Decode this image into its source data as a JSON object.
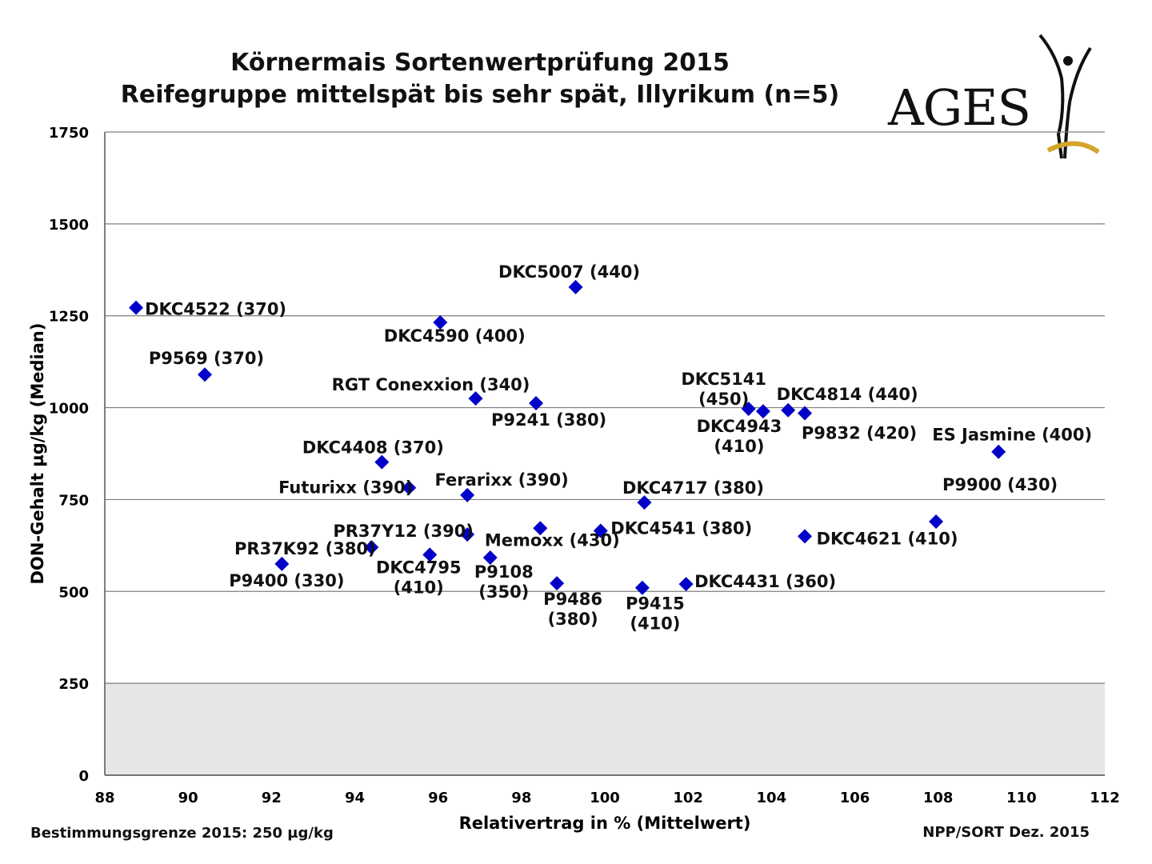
{
  "header": {
    "title_line1": "Körnermais Sortenwertprüfung  2015",
    "title_line2": "Reifegruppe  mittelspät bis sehr spät, Illyrikum  (n=5)"
  },
  "logo": {
    "text": "AGES",
    "accent_color": "#d4a52a"
  },
  "footer": {
    "left": "Bestimmungsgrenze  2015:  250 µg/kg",
    "right": "NPP/SORT  Dez.  2015"
  },
  "colors": {
    "marker": "#0000c8",
    "grid": "#7f7f7f",
    "shade": "#e6e6e6"
  },
  "chart_data": {
    "type": "scatter",
    "xlabel": "Relativertrag in % (Mittelwert)",
    "ylabel": "DON-Gehalt µg/kg (Median)",
    "xlim": [
      88,
      112
    ],
    "ylim": [
      0,
      1750
    ],
    "x_ticks": [
      88,
      90,
      92,
      94,
      96,
      98,
      100,
      102,
      104,
      106,
      108,
      110,
      112
    ],
    "y_ticks": [
      0,
      250,
      500,
      750,
      1000,
      1250,
      1500,
      1750
    ],
    "grid": "horizontal",
    "shaded_region": {
      "y_from": 0,
      "y_to": 250
    },
    "points": [
      {
        "label": "DKC4522 (370)",
        "x": 88.75,
        "y": 1272
      },
      {
        "label": "P9569 (370)",
        "x": 90.4,
        "y": 1090
      },
      {
        "label": "DKC5007 (440)",
        "x": 99.3,
        "y": 1328
      },
      {
        "label": "DKC4590 (400)",
        "x": 96.05,
        "y": 1232
      },
      {
        "label": "RGT Conexxion (340)",
        "x": 96.9,
        "y": 1025
      },
      {
        "label": "P9241 (380)",
        "x": 98.35,
        "y": 1012
      },
      {
        "label": "DKC5141 (450)",
        "x": 103.45,
        "y": 997
      },
      {
        "label": "DKC4943 (410)",
        "x": 103.8,
        "y": 990
      },
      {
        "label": "DKC4814 (440)",
        "x": 104.4,
        "y": 993
      },
      {
        "label": "P9832 (420)",
        "x": 104.8,
        "y": 985
      },
      {
        "label": "ES Jasmine (400)",
        "x": 109.45,
        "y": 880
      },
      {
        "label": "DKC4408 (370)",
        "x": 94.65,
        "y": 852
      },
      {
        "label": "Futurixx (390)",
        "x": 95.3,
        "y": 782
      },
      {
        "label": "Ferarixx (390)",
        "x": 96.7,
        "y": 762
      },
      {
        "label": "DKC4717 (380)",
        "x": 100.95,
        "y": 742
      },
      {
        "label": "P9900 (430)",
        "x": 107.95,
        "y": 690
      },
      {
        "label": "PR37Y12 (390)",
        "x": 96.7,
        "y": 655
      },
      {
        "label": "Memoxx (430)",
        "x": 98.45,
        "y": 672
      },
      {
        "label": "DKC4541 (380)",
        "x": 99.9,
        "y": 665
      },
      {
        "label": "DKC4621 (410)",
        "x": 104.8,
        "y": 650
      },
      {
        "label": "PR37K92 (380)",
        "x": 94.4,
        "y": 620
      },
      {
        "label": "DKC4795 (410)",
        "x": 95.8,
        "y": 600
      },
      {
        "label": "P9108 (350)",
        "x": 97.25,
        "y": 592
      },
      {
        "label": "P9400 (330)",
        "x": 92.25,
        "y": 575
      },
      {
        "label": "P9486 (380)",
        "x": 98.85,
        "y": 522
      },
      {
        "label": "P9415 (410)",
        "x": 100.9,
        "y": 510
      },
      {
        "label": "DKC4431 (360)",
        "x": 101.95,
        "y": 520
      }
    ]
  }
}
